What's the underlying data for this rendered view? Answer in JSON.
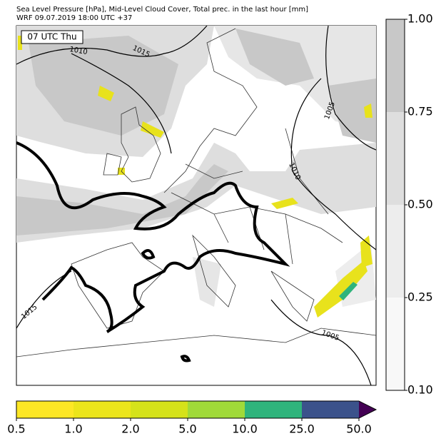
{
  "header": {
    "line1": "Sea Level Pressure [hPa], Mid-Level Cloud Cover, Total prec. in the last hour [mm]",
    "line2": "WRF 09.07.2019 18:00 UTC +37"
  },
  "map": {
    "time_label": "07 UTC Thu",
    "isobar_labels": [
      "1010",
      "1015",
      "1005",
      "1010",
      "1015",
      "1005"
    ]
  },
  "cloud_colorbar": {
    "ticks": [
      {
        "value": 0.1,
        "label": "0.10"
      },
      {
        "value": 0.25,
        "label": "0.25"
      },
      {
        "value": 0.5,
        "label": "0.50"
      },
      {
        "value": 0.75,
        "label": "0.75"
      },
      {
        "value": 1.0,
        "label": "1.00"
      }
    ],
    "colors": [
      "#f8f8f8",
      "#ededed",
      "#dedede",
      "#c8c8c8"
    ]
  },
  "precip_colorbar": {
    "ticks": [
      {
        "value": 0.5,
        "label": "0.5"
      },
      {
        "value": 1,
        "label": "1.0"
      },
      {
        "value": 2,
        "label": "2.0"
      },
      {
        "value": 5,
        "label": "5.0"
      },
      {
        "value": 10,
        "label": "10.0"
      },
      {
        "value": 25,
        "label": "25.0"
      },
      {
        "value": 50,
        "label": "50.0"
      }
    ],
    "colors": [
      "#fde725",
      "#ece51b",
      "#d5e21a",
      "#a0da39",
      "#2fb47c",
      "#3b528b",
      "#440154"
    ]
  }
}
